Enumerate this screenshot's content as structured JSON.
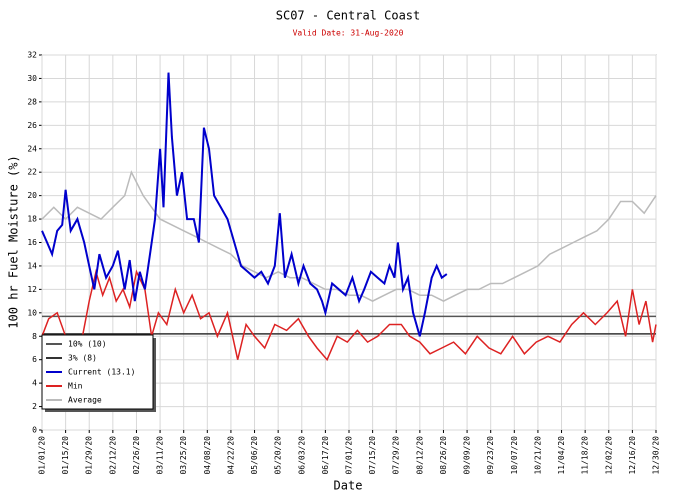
{
  "chart_data": {
    "type": "line",
    "title": "SC07 - Central Coast",
    "subtitle": "Valid Date: 31-Aug-2020",
    "xlabel": "Date",
    "ylabel": "100 hr Fuel Moisture (%)",
    "xlim": [
      "2020-01-01",
      "2020-12-30"
    ],
    "xticks": [
      {
        "value": "2020-01-01",
        "label": "01/01/20"
      },
      {
        "value": "2020-01-15",
        "label": "01/15/20"
      },
      {
        "value": "2020-01-29",
        "label": "01/29/20"
      },
      {
        "value": "2020-02-12",
        "label": "02/12/20"
      },
      {
        "value": "2020-02-26",
        "label": "02/26/20"
      },
      {
        "value": "2020-03-11",
        "label": "03/11/20"
      },
      {
        "value": "2020-03-25",
        "label": "03/25/20"
      },
      {
        "value": "2020-04-08",
        "label": "04/08/20"
      },
      {
        "value": "2020-04-22",
        "label": "04/22/20"
      },
      {
        "value": "2020-05-06",
        "label": "05/06/20"
      },
      {
        "value": "2020-05-20",
        "label": "05/20/20"
      },
      {
        "value": "2020-06-03",
        "label": "06/03/20"
      },
      {
        "value": "2020-06-17",
        "label": "06/17/20"
      },
      {
        "value": "2020-07-01",
        "label": "07/01/20"
      },
      {
        "value": "2020-07-15",
        "label": "07/15/20"
      },
      {
        "value": "2020-07-29",
        "label": "07/29/20"
      },
      {
        "value": "2020-08-12",
        "label": "08/12/20"
      },
      {
        "value": "2020-08-26",
        "label": "08/26/20"
      },
      {
        "value": "2020-09-09",
        "label": "09/09/20"
      },
      {
        "value": "2020-09-23",
        "label": "09/23/20"
      },
      {
        "value": "2020-10-07",
        "label": "10/07/20"
      },
      {
        "value": "2020-10-21",
        "label": "10/21/20"
      },
      {
        "value": "2020-11-04",
        "label": "11/04/20"
      },
      {
        "value": "2020-11-18",
        "label": "11/18/20"
      },
      {
        "value": "2020-12-02",
        "label": "12/02/20"
      },
      {
        "value": "2020-12-16",
        "label": "12/16/20"
      },
      {
        "value": "2020-12-30",
        "label": "12/30/20"
      }
    ],
    "ylim": [
      0,
      32
    ],
    "yticks": [
      0,
      2,
      4,
      6,
      8,
      10,
      12,
      14,
      16,
      18,
      20,
      22,
      24,
      26,
      28,
      30,
      32
    ],
    "grid": true,
    "legend": "lower-left",
    "reference_lines": [
      {
        "name": "10% (10)",
        "value": 9.7,
        "color": "#555555"
      },
      {
        "name": "3% (8)",
        "value": 8.2,
        "color": "#333333"
      }
    ],
    "series": [
      {
        "name": "Current (13.1)",
        "color": "#0000cc",
        "x": [
          "2020-01-01",
          "2020-01-04",
          "2020-01-07",
          "2020-01-10",
          "2020-01-13",
          "2020-01-15",
          "2020-01-18",
          "2020-01-22",
          "2020-01-26",
          "2020-01-29",
          "2020-02-01",
          "2020-02-04",
          "2020-02-08",
          "2020-02-12",
          "2020-02-15",
          "2020-02-19",
          "2020-02-22",
          "2020-02-25",
          "2020-02-28",
          "2020-03-02",
          "2020-03-05",
          "2020-03-08",
          "2020-03-11",
          "2020-03-13",
          "2020-03-16",
          "2020-03-18",
          "2020-03-21",
          "2020-03-24",
          "2020-03-27",
          "2020-03-31",
          "2020-04-03",
          "2020-04-06",
          "2020-04-09",
          "2020-04-12",
          "2020-04-16",
          "2020-04-20",
          "2020-04-24",
          "2020-04-28",
          "2020-05-02",
          "2020-05-06",
          "2020-05-10",
          "2020-05-14",
          "2020-05-18",
          "2020-05-21",
          "2020-05-24",
          "2020-05-28",
          "2020-06-01",
          "2020-06-04",
          "2020-06-08",
          "2020-06-12",
          "2020-06-15",
          "2020-06-17",
          "2020-06-21",
          "2020-06-25",
          "2020-06-29",
          "2020-07-03",
          "2020-07-07",
          "2020-07-10",
          "2020-07-14",
          "2020-07-18",
          "2020-07-22",
          "2020-07-25",
          "2020-07-28",
          "2020-07-30",
          "2020-08-02",
          "2020-08-05",
          "2020-08-08",
          "2020-08-12",
          "2020-08-15",
          "2020-08-19",
          "2020-08-22",
          "2020-08-25",
          "2020-08-28"
        ],
        "values": [
          17,
          16,
          15,
          17,
          17.5,
          20.5,
          17,
          18,
          16,
          14,
          12,
          15,
          13,
          14,
          15.3,
          12,
          14.5,
          11,
          13.5,
          12,
          15,
          18,
          24,
          19,
          30.5,
          25,
          20,
          22,
          18,
          18,
          16,
          25.8,
          24,
          20,
          19,
          18,
          16,
          14,
          13.5,
          13,
          13.5,
          12.5,
          14,
          18.5,
          13,
          15,
          12.5,
          14,
          12.5,
          12,
          11,
          10,
          12.5,
          12,
          11.5,
          13,
          11,
          12,
          13.5,
          13,
          12.5,
          14,
          13,
          16,
          12,
          13,
          10,
          8,
          10,
          13,
          14,
          13,
          13.3
        ]
      },
      {
        "name": "Min",
        "color": "#dd2222",
        "x": [
          "2020-01-01",
          "2020-01-05",
          "2020-01-10",
          "2020-01-15",
          "2020-01-20",
          "2020-01-25",
          "2020-01-29",
          "2020-02-02",
          "2020-02-06",
          "2020-02-10",
          "2020-02-14",
          "2020-02-18",
          "2020-02-22",
          "2020-02-26",
          "2020-03-02",
          "2020-03-06",
          "2020-03-10",
          "2020-03-15",
          "2020-03-20",
          "2020-03-25",
          "2020-03-30",
          "2020-04-04",
          "2020-04-09",
          "2020-04-14",
          "2020-04-20",
          "2020-04-26",
          "2020-05-01",
          "2020-05-06",
          "2020-05-12",
          "2020-05-18",
          "2020-05-25",
          "2020-06-01",
          "2020-06-07",
          "2020-06-12",
          "2020-06-18",
          "2020-06-24",
          "2020-06-30",
          "2020-07-06",
          "2020-07-12",
          "2020-07-18",
          "2020-07-25",
          "2020-08-01",
          "2020-08-06",
          "2020-08-12",
          "2020-08-18",
          "2020-08-25",
          "2020-09-01",
          "2020-09-08",
          "2020-09-15",
          "2020-09-22",
          "2020-09-29",
          "2020-10-06",
          "2020-10-13",
          "2020-10-20",
          "2020-10-27",
          "2020-11-03",
          "2020-11-10",
          "2020-11-17",
          "2020-11-24",
          "2020-12-01",
          "2020-12-07",
          "2020-12-12",
          "2020-12-16",
          "2020-12-20",
          "2020-12-24",
          "2020-12-28",
          "2020-12-30"
        ],
        "values": [
          8,
          9.5,
          10,
          8,
          5.5,
          8,
          11,
          13.5,
          11.5,
          13,
          11,
          12,
          10.5,
          13.5,
          12,
          8,
          10,
          9,
          12,
          10,
          11.5,
          9.5,
          10,
          8,
          10,
          6,
          9,
          8,
          7,
          9,
          8.5,
          9.5,
          8,
          7,
          6,
          8,
          7.5,
          8.5,
          7.5,
          8,
          9,
          9,
          8,
          7.5,
          6.5,
          7,
          7.5,
          6.5,
          8,
          7,
          6.5,
          8,
          6.5,
          7.5,
          8,
          7.5,
          9,
          10,
          9,
          10,
          11,
          8,
          12,
          9,
          11,
          7.5,
          9
        ]
      },
      {
        "name": "Average",
        "color": "#bbbbbb",
        "x": [
          "2020-01-01",
          "2020-01-08",
          "2020-01-15",
          "2020-01-22",
          "2020-01-29",
          "2020-02-05",
          "2020-02-12",
          "2020-02-19",
          "2020-02-23",
          "2020-03-01",
          "2020-03-06",
          "2020-03-11",
          "2020-03-18",
          "2020-03-25",
          "2020-04-01",
          "2020-04-08",
          "2020-04-15",
          "2020-04-22",
          "2020-04-29",
          "2020-05-06",
          "2020-05-13",
          "2020-05-20",
          "2020-05-27",
          "2020-06-03",
          "2020-06-10",
          "2020-06-17",
          "2020-06-24",
          "2020-07-01",
          "2020-07-08",
          "2020-07-15",
          "2020-07-22",
          "2020-07-29",
          "2020-08-05",
          "2020-08-12",
          "2020-08-19",
          "2020-08-26",
          "2020-09-02",
          "2020-09-09",
          "2020-09-16",
          "2020-09-23",
          "2020-09-30",
          "2020-10-07",
          "2020-10-14",
          "2020-10-21",
          "2020-10-28",
          "2020-11-04",
          "2020-11-11",
          "2020-11-18",
          "2020-11-25",
          "2020-12-02",
          "2020-12-09",
          "2020-12-16",
          "2020-12-23",
          "2020-12-30"
        ],
        "values": [
          18,
          19,
          18,
          19,
          18.5,
          18,
          19,
          20,
          22,
          20,
          19,
          18,
          17.5,
          17,
          16.5,
          16,
          15.5,
          15,
          14,
          13.5,
          13,
          13.5,
          13,
          13,
          12.5,
          12,
          12,
          11.5,
          11.5,
          11,
          11.5,
          12,
          12,
          11.5,
          11.5,
          11,
          11.5,
          12,
          12,
          12.5,
          12.5,
          13,
          13.5,
          14,
          15,
          15.5,
          16,
          16.5,
          17,
          18,
          19.5,
          19.5,
          18.5,
          20
        ]
      }
    ]
  }
}
